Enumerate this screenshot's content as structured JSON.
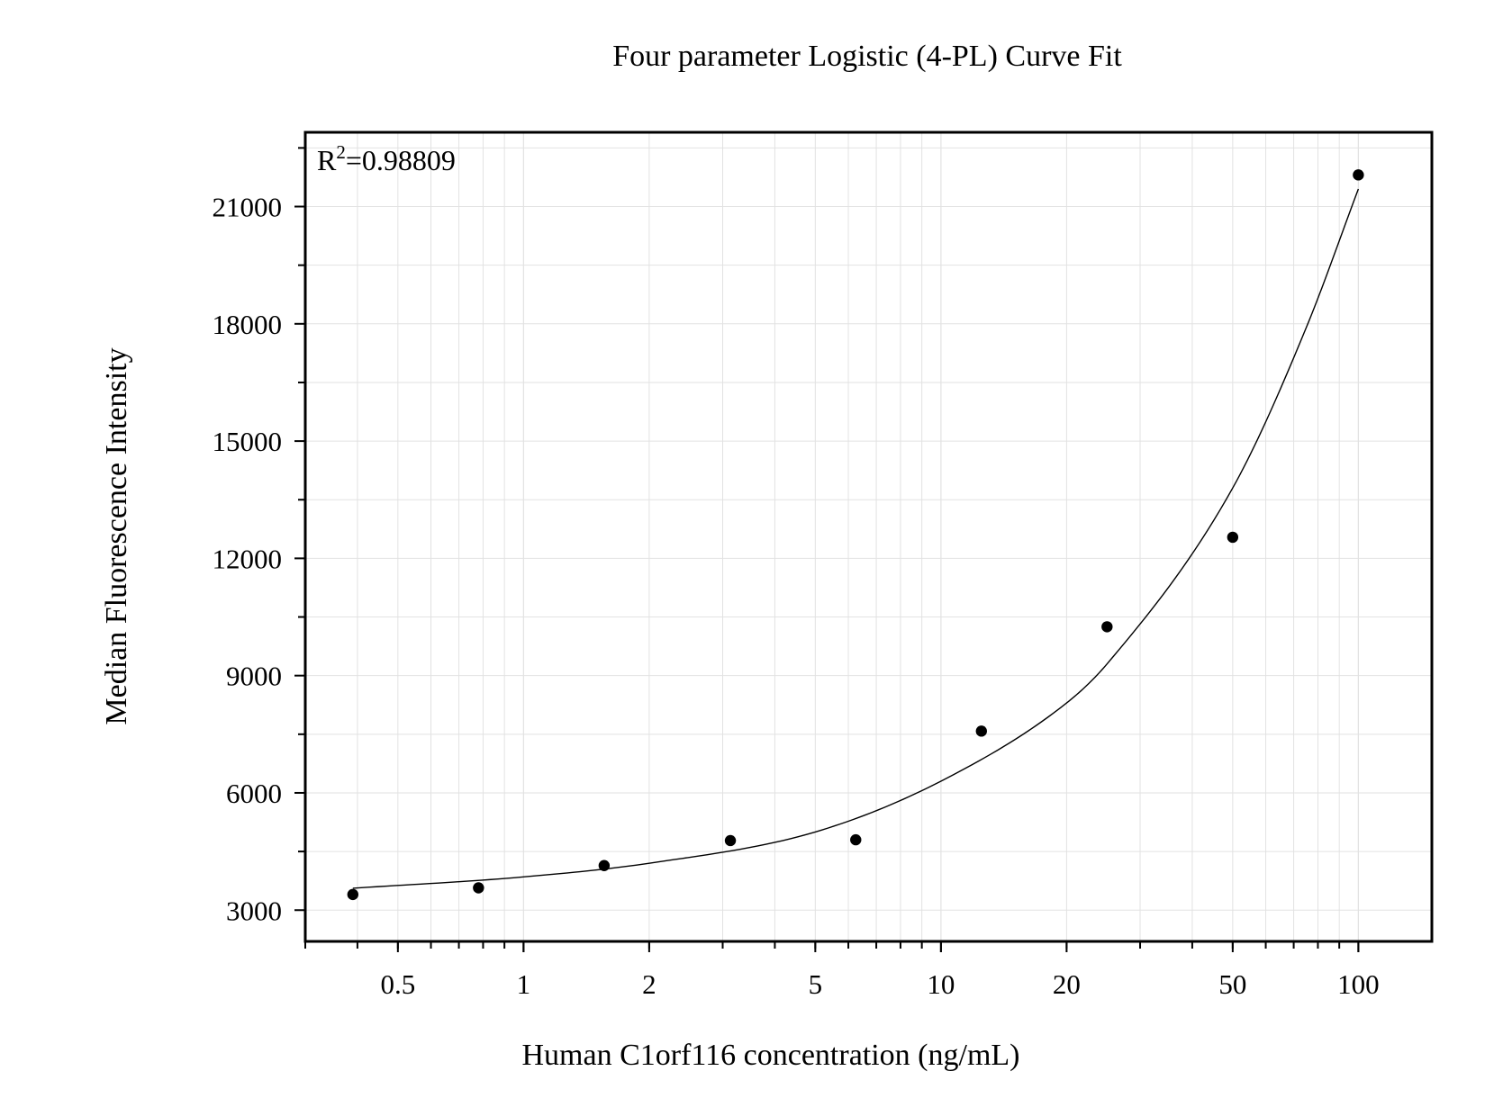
{
  "chart_data": {
    "type": "scatter",
    "title": "Four parameter Logistic (4-PL) Curve Fit",
    "xlabel": "Human C1orf116 concentration (ng/mL)",
    "ylabel": "Median Fluorescence Intensity",
    "annotation": {
      "label": "R",
      "superscript": "2",
      "value": "=0.98809"
    },
    "x_scale": "log",
    "xlim": [
      0.3,
      150
    ],
    "ylim": [
      2200,
      22900
    ],
    "x_ticks": [
      {
        "value": 0.5,
        "label": "0.5"
      },
      {
        "value": 1,
        "label": "1"
      },
      {
        "value": 2,
        "label": "2"
      },
      {
        "value": 5,
        "label": "5"
      },
      {
        "value": 10,
        "label": "10"
      },
      {
        "value": 20,
        "label": "20"
      },
      {
        "value": 50,
        "label": "50"
      },
      {
        "value": 100,
        "label": "100"
      }
    ],
    "y_ticks": [
      {
        "value": 3000,
        "label": "3000"
      },
      {
        "value": 6000,
        "label": "6000"
      },
      {
        "value": 9000,
        "label": "9000"
      },
      {
        "value": 12000,
        "label": "12000"
      },
      {
        "value": 15000,
        "label": "15000"
      },
      {
        "value": 18000,
        "label": "18000"
      },
      {
        "value": 21000,
        "label": "21000"
      }
    ],
    "points": [
      {
        "x": 0.39,
        "y": 3400
      },
      {
        "x": 0.78,
        "y": 3570
      },
      {
        "x": 1.56,
        "y": 4140
      },
      {
        "x": 3.13,
        "y": 4780
      },
      {
        "x": 6.25,
        "y": 4800
      },
      {
        "x": 12.5,
        "y": 7580
      },
      {
        "x": 25,
        "y": 10250
      },
      {
        "x": 50,
        "y": 12540
      },
      {
        "x": 100,
        "y": 21810
      }
    ],
    "fit_curve": [
      {
        "x": 0.39,
        "y": 3560
      },
      {
        "x": 1,
        "y": 3850
      },
      {
        "x": 2,
        "y": 4200
      },
      {
        "x": 5,
        "y": 5000
      },
      {
        "x": 10,
        "y": 6300
      },
      {
        "x": 20,
        "y": 8300
      },
      {
        "x": 25,
        "y": 9300
      },
      {
        "x": 50,
        "y": 13800
      },
      {
        "x": 75,
        "y": 17900
      },
      {
        "x": 100,
        "y": 21450
      }
    ],
    "grid": true,
    "colors": {
      "points": "#000000",
      "curve": "#000000",
      "grid": "#e2e2e2",
      "frame": "#000000"
    }
  }
}
